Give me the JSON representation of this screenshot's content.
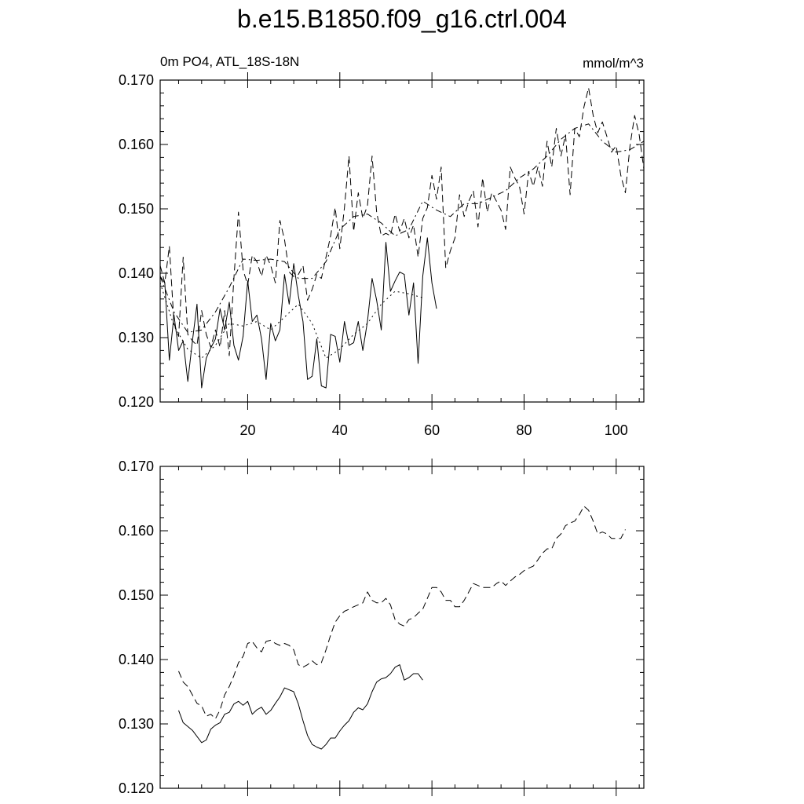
{
  "title": "b.e15.B1850.f09_g16.ctrl.004",
  "chart_data": [
    {
      "type": "line",
      "left_label": "0m PO4, ATL_18S-18N",
      "right_label": "mmol/m^3",
      "xlim": [
        1,
        106
      ],
      "ylim": [
        0.12,
        0.17
      ],
      "yticks": [
        0.12,
        0.13,
        0.14,
        0.15,
        0.16,
        0.17
      ],
      "ytick_labels": [
        "0.120",
        "0.130",
        "0.140",
        "0.150",
        "0.160",
        "0.170"
      ],
      "xticks": [
        20,
        40,
        60,
        80,
        100
      ],
      "xtick_labels": [
        "20",
        "40",
        "60",
        "80",
        "100"
      ],
      "series": [
        {
          "style": "solid",
          "x": [
            1,
            2,
            3,
            4,
            5,
            6,
            7,
            8,
            9,
            10,
            11,
            12,
            13,
            14,
            15,
            16,
            17,
            18,
            19,
            20,
            21,
            22,
            23,
            24,
            25,
            26,
            27,
            28,
            29,
            30,
            31,
            32,
            33,
            34,
            35,
            36,
            37,
            38,
            39,
            40,
            41,
            42,
            43,
            44,
            45,
            46,
            47,
            48,
            49,
            50,
            51,
            52,
            53,
            54,
            55,
            56,
            57,
            58,
            59,
            60,
            61
          ],
          "y": [
            0.1395,
            0.1385,
            0.1265,
            0.1335,
            0.128,
            0.1295,
            0.1232,
            0.1295,
            0.1352,
            0.1222,
            0.1268,
            0.1284,
            0.1298,
            0.1345,
            0.1312,
            0.1355,
            0.1288,
            0.1265,
            0.1302,
            0.1388,
            0.1325,
            0.1335,
            0.1298,
            0.1235,
            0.1322,
            0.1295,
            0.1312,
            0.1398,
            0.1352,
            0.1415,
            0.1365,
            0.1325,
            0.1235,
            0.124,
            0.1298,
            0.1225,
            0.1222,
            0.1305,
            0.1302,
            0.1262,
            0.1325,
            0.1288,
            0.1292,
            0.1325,
            0.128,
            0.1325,
            0.1392,
            0.1358,
            0.1312,
            0.1448,
            0.1372,
            0.1388,
            0.1402,
            0.1398,
            0.1335,
            0.1385,
            0.126,
            0.1395,
            0.1455,
            0.1385,
            0.1345
          ]
        },
        {
          "style": "dashed",
          "x": [
            1,
            2,
            3,
            4,
            5,
            6,
            7,
            8,
            9,
            10,
            11,
            12,
            13,
            14,
            15,
            16,
            17,
            18,
            19,
            20,
            21,
            22,
            23,
            24,
            25,
            26,
            27,
            28,
            29,
            30,
            31,
            32,
            33,
            34,
            35,
            36,
            37,
            38,
            39,
            40,
            41,
            42,
            43,
            44,
            45,
            46,
            47,
            48,
            49,
            50,
            51,
            52,
            53,
            54,
            55,
            56,
            57,
            58,
            59,
            60,
            61,
            62,
            63,
            64,
            65,
            66,
            67,
            68,
            69,
            70,
            71,
            72,
            73,
            74,
            75,
            76,
            77,
            78,
            79,
            80,
            81,
            82,
            83,
            84,
            85,
            86,
            87,
            88,
            89,
            90,
            91,
            92,
            93,
            94,
            95,
            96,
            97,
            98,
            99,
            100,
            101,
            102,
            103,
            104,
            105,
            106
          ],
          "y": [
            0.1412,
            0.1385,
            0.1442,
            0.1322,
            0.1302,
            0.1425,
            0.1305,
            0.1295,
            0.1288,
            0.1342,
            0.1305,
            0.1285,
            0.1312,
            0.1285,
            0.1342,
            0.1272,
            0.1392,
            0.1495,
            0.1405,
            0.1382,
            0.1428,
            0.1418,
            0.1395,
            0.1428,
            0.1412,
            0.1385,
            0.1482,
            0.1452,
            0.1402,
            0.1395,
            0.1398,
            0.1412,
            0.1358,
            0.1375,
            0.1398,
            0.1392,
            0.1425,
            0.1458,
            0.1502,
            0.1438,
            0.1502,
            0.1582,
            0.1465,
            0.1525,
            0.1485,
            0.1505,
            0.1582,
            0.1495,
            0.1458,
            0.1462,
            0.1458,
            0.1492,
            0.1465,
            0.1485,
            0.1455,
            0.1475,
            0.1425,
            0.1485,
            0.1502,
            0.1552,
            0.1515,
            0.1565,
            0.1408,
            0.1435,
            0.1455,
            0.1522,
            0.1488,
            0.1512,
            0.1528,
            0.1472,
            0.1548,
            0.1495,
            0.1525,
            0.1512,
            0.1498,
            0.1468,
            0.1565,
            0.1548,
            0.1535,
            0.1492,
            0.1558,
            0.1535,
            0.1565,
            0.1535,
            0.1605,
            0.1565,
            0.1625,
            0.1582,
            0.1615,
            0.1522,
            0.1625,
            0.1612,
            0.1658,
            0.1688,
            0.1645,
            0.1618,
            0.1635,
            0.1612,
            0.1588,
            0.1598,
            0.1552,
            0.1525,
            0.1598,
            0.1645,
            0.1615,
            0.1562
          ]
        },
        {
          "style": "dashdot",
          "x": [
            1,
            4,
            7,
            10,
            13,
            16,
            19,
            22,
            25,
            28,
            31,
            34,
            37,
            40,
            43,
            46,
            49,
            52,
            55,
            58,
            61,
            64,
            67,
            70,
            73,
            76,
            79,
            82,
            85,
            88,
            91,
            94,
            97,
            100,
            103,
            106
          ],
          "y": [
            0.1395,
            0.134,
            0.1308,
            0.1312,
            0.134,
            0.1378,
            0.1422,
            0.142,
            0.1422,
            0.1418,
            0.1392,
            0.1392,
            0.1418,
            0.1468,
            0.1488,
            0.1492,
            0.1478,
            0.1458,
            0.1468,
            0.1512,
            0.1498,
            0.1488,
            0.1508,
            0.1508,
            0.1518,
            0.1528,
            0.1548,
            0.1562,
            0.1582,
            0.1608,
            0.1625,
            0.1632,
            0.1605,
            0.1588,
            0.1592,
            0.1605
          ]
        },
        {
          "style": "dotted",
          "x": [
            1,
            4,
            7,
            10,
            13,
            16,
            19,
            22,
            25,
            28,
            31,
            34,
            37,
            40,
            43,
            46,
            49,
            52,
            55,
            58
          ],
          "y": [
            0.1385,
            0.1318,
            0.1282,
            0.1268,
            0.1288,
            0.1322,
            0.1318,
            0.1325,
            0.1312,
            0.1332,
            0.1352,
            0.1322,
            0.1268,
            0.1282,
            0.1305,
            0.1322,
            0.1352,
            0.1372,
            0.1368,
            0.1362
          ]
        }
      ]
    },
    {
      "type": "line",
      "xlim": [
        1,
        106
      ],
      "ylim": [
        0.12,
        0.17
      ],
      "yticks": [
        0.12,
        0.13,
        0.14,
        0.15,
        0.16,
        0.17
      ],
      "ytick_labels": [
        "0.120",
        "0.130",
        "0.140",
        "0.150",
        "0.160",
        "0.170"
      ],
      "xticks": [
        20,
        40,
        60,
        80,
        100
      ],
      "series": [
        {
          "style": "solid",
          "x": [
            5,
            6,
            8,
            10,
            11,
            12,
            13,
            14,
            15,
            16,
            17,
            18,
            19,
            20,
            21,
            22,
            23,
            24,
            25,
            26,
            27,
            28,
            30,
            31,
            32,
            33,
            34,
            35,
            36,
            37,
            38,
            39,
            40,
            41,
            42,
            43,
            44,
            45,
            46,
            47,
            48,
            49,
            50,
            51,
            52,
            53,
            54,
            55,
            56,
            57,
            58
          ],
          "y": [
            0.1321,
            0.1302,
            0.129,
            0.1271,
            0.1275,
            0.1292,
            0.1298,
            0.1302,
            0.1315,
            0.1318,
            0.1331,
            0.1335,
            0.1329,
            0.1335,
            0.1315,
            0.1322,
            0.1326,
            0.1315,
            0.1321,
            0.1332,
            0.1342,
            0.1356,
            0.135,
            0.1331,
            0.1305,
            0.1282,
            0.1268,
            0.1264,
            0.1261,
            0.1268,
            0.1278,
            0.1278,
            0.1289,
            0.1298,
            0.1305,
            0.1318,
            0.1325,
            0.1322,
            0.1331,
            0.135,
            0.1365,
            0.137,
            0.1372,
            0.1378,
            0.1388,
            0.1392,
            0.1368,
            0.1372,
            0.1378,
            0.1378,
            0.1368
          ]
        },
        {
          "style": "dashed",
          "x": [
            5,
            6,
            7,
            8,
            9,
            10,
            11,
            12,
            13,
            14,
            15,
            16,
            17,
            18,
            19,
            20,
            21,
            22,
            23,
            24,
            25,
            26,
            27,
            28,
            29,
            30,
            31,
            32,
            33,
            34,
            35,
            36,
            37,
            38,
            39,
            40,
            41,
            42,
            43,
            44,
            45,
            46,
            47,
            48,
            49,
            50,
            51,
            52,
            53,
            54,
            55,
            56,
            57,
            58,
            59,
            60,
            61,
            62,
            63,
            64,
            65,
            66,
            67,
            68,
            69,
            70,
            71,
            72,
            73,
            74,
            75,
            76,
            77,
            78,
            79,
            80,
            81,
            82,
            83,
            84,
            85,
            86,
            87,
            88,
            89,
            90,
            91,
            92,
            93,
            94,
            95,
            96,
            97,
            98,
            99,
            100,
            101,
            102
          ],
          "y": [
            0.1382,
            0.1365,
            0.1358,
            0.1345,
            0.1332,
            0.1328,
            0.1312,
            0.1315,
            0.1308,
            0.1322,
            0.1345,
            0.1358,
            0.1375,
            0.1395,
            0.1405,
            0.1425,
            0.1428,
            0.1418,
            0.1412,
            0.1428,
            0.143,
            0.1425,
            0.1422,
            0.1425,
            0.1422,
            0.1415,
            0.1392,
            0.1388,
            0.1392,
            0.1398,
            0.1392,
            0.1395,
            0.1415,
            0.1438,
            0.1458,
            0.1468,
            0.1475,
            0.1478,
            0.1482,
            0.1485,
            0.1488,
            0.1505,
            0.1492,
            0.1488,
            0.1488,
            0.1495,
            0.1485,
            0.1462,
            0.1455,
            0.1452,
            0.1462,
            0.1465,
            0.1472,
            0.1478,
            0.1495,
            0.1512,
            0.1512,
            0.1505,
            0.1492,
            0.1492,
            0.1482,
            0.1482,
            0.1492,
            0.1505,
            0.1518,
            0.1515,
            0.1512,
            0.1512,
            0.1512,
            0.1518,
            0.1522,
            0.1515,
            0.1522,
            0.1528,
            0.1532,
            0.1538,
            0.1542,
            0.1545,
            0.1555,
            0.1565,
            0.1572,
            0.1572,
            0.1588,
            0.1595,
            0.1608,
            0.1612,
            0.1615,
            0.1625,
            0.1638,
            0.1632,
            0.1615,
            0.1595,
            0.1598,
            0.1595,
            0.1588,
            0.1588,
            0.1588,
            0.1602
          ]
        }
      ]
    }
  ]
}
